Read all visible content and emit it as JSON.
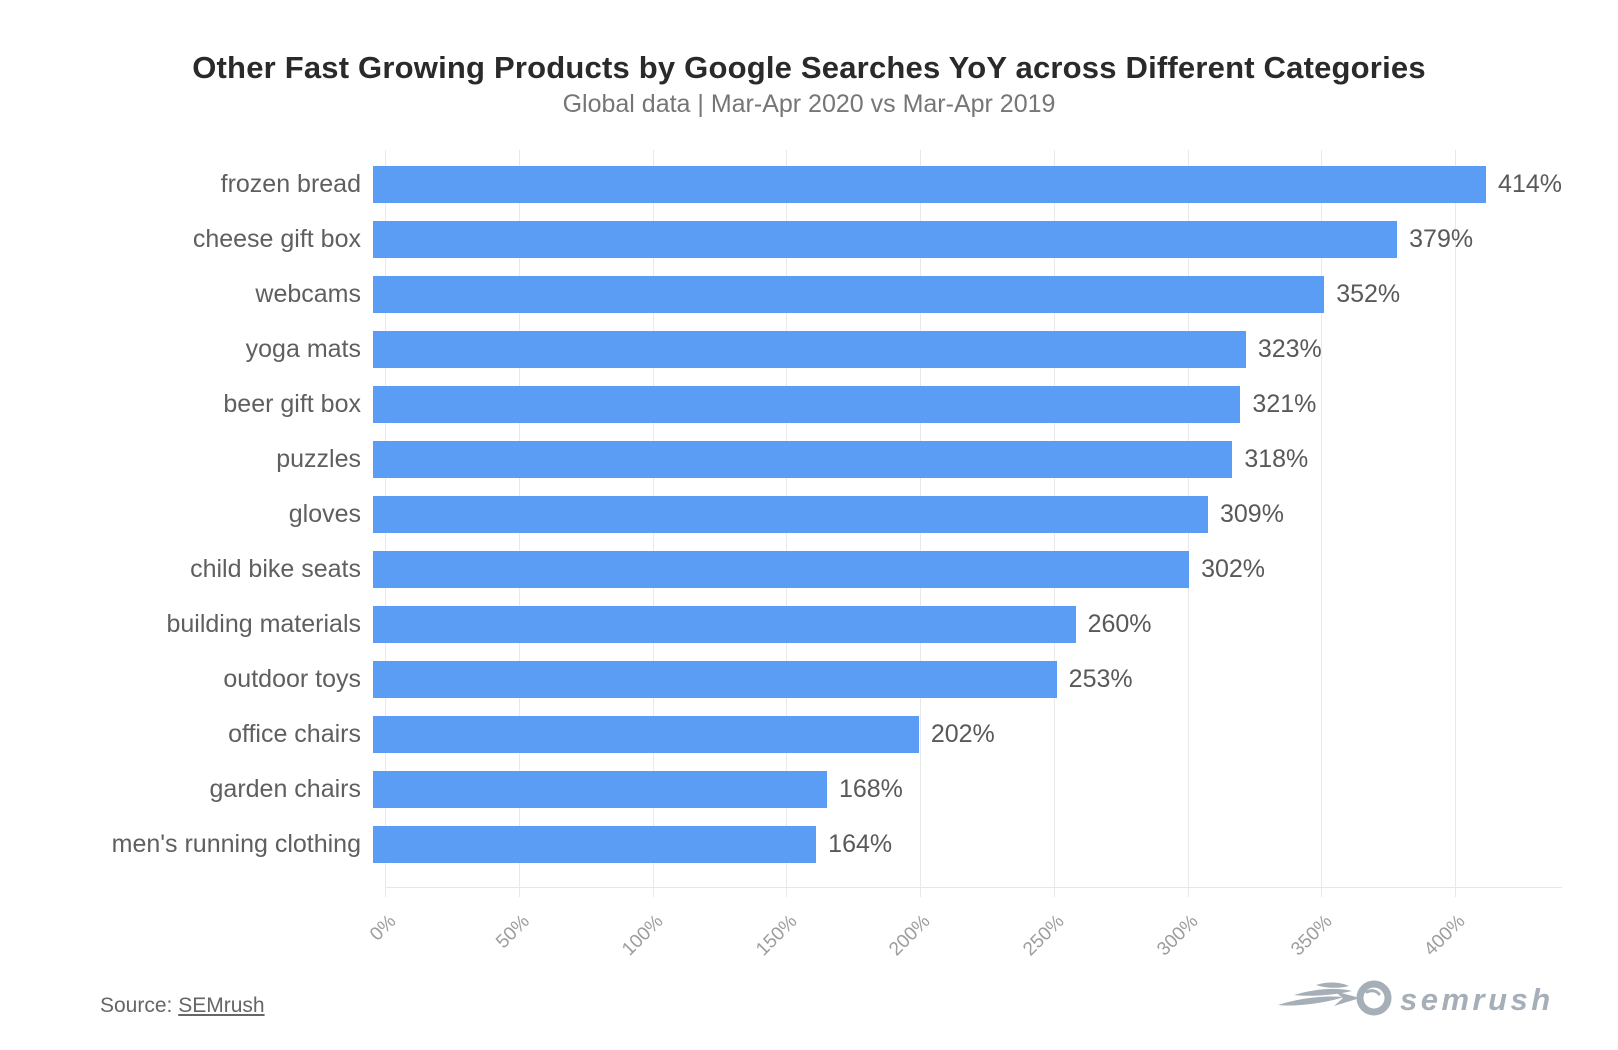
{
  "title": "Other Fast Growing Products by Google Searches YoY across Different Categories",
  "subtitle": "Global data | Mar-Apr 2020 vs Mar-Apr 2019",
  "source": {
    "label": "Source: ",
    "link_text": "SEMrush"
  },
  "logo": {
    "text": "semrush"
  },
  "colors": {
    "bar": "#5b9cf4",
    "grid": "#e9e9e9",
    "axis_line": "#e7e7e7",
    "category_label": "#5f5f5f",
    "value_label": "#595959",
    "tick_label": "#9d9d9d",
    "title": "#2a2a2a",
    "subtitle": "#767676",
    "logo": "#a6afb7"
  },
  "chart_data": {
    "type": "bar",
    "orientation": "horizontal",
    "title": "Other Fast Growing Products by Google Searches YoY across Different Categories",
    "subtitle": "Global data | Mar-Apr 2020 vs Mar-Apr 2019",
    "categories": [
      "frozen bread",
      "cheese gift box",
      "webcams",
      "yoga mats",
      "beer gift box",
      "puzzles",
      "gloves",
      "child bike seats",
      "building materials",
      "outdoor toys",
      "office chairs",
      "garden chairs",
      "men's running clothing"
    ],
    "values": [
      414,
      379,
      352,
      323,
      321,
      318,
      309,
      302,
      260,
      253,
      202,
      168,
      164
    ],
    "value_labels": [
      "414%",
      "379%",
      "352%",
      "323%",
      "321%",
      "318%",
      "309%",
      "302%",
      "260%",
      "253%",
      "202%",
      "168%",
      "164%"
    ],
    "value_suffix": "%",
    "xlabel": "",
    "ylabel": "",
    "xlim": [
      0,
      440
    ],
    "xtick_values": [
      0,
      50,
      100,
      150,
      200,
      250,
      300,
      350,
      400
    ],
    "xtick_labels": [
      "0%",
      "50%",
      "100%",
      "150%",
      "200%",
      "250%",
      "300%",
      "350%",
      "400%"
    ],
    "grid": true,
    "legend": false
  }
}
